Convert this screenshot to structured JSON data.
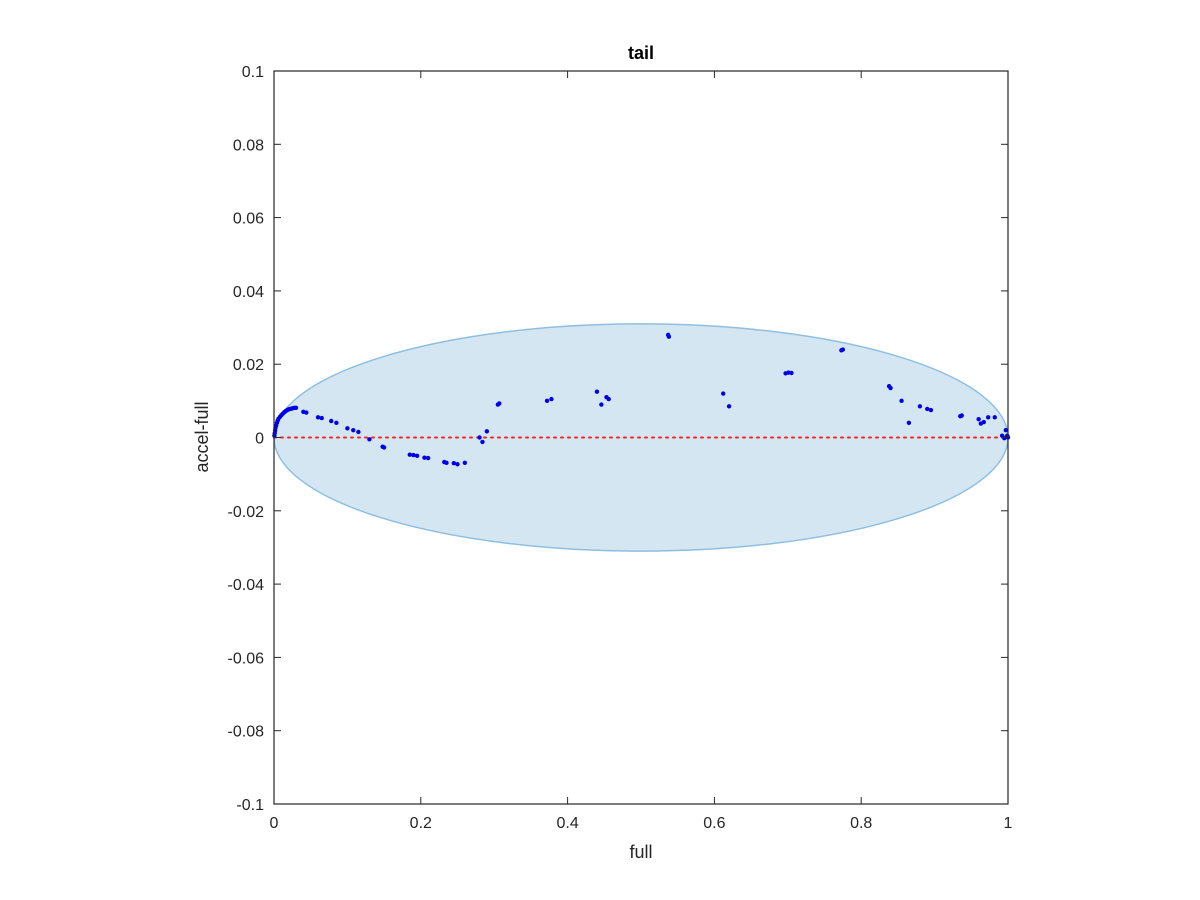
{
  "chart_data": {
    "type": "scatter",
    "title": "tail",
    "xlabel": "full",
    "ylabel": "accel-full",
    "xlim": [
      0,
      1
    ],
    "ylim": [
      -0.1,
      0.1
    ],
    "x_ticks": [
      0,
      0.2,
      0.4,
      0.6,
      0.8,
      1
    ],
    "x_tick_labels": [
      "0",
      "0.2",
      "0.4",
      "0.6",
      "0.8",
      "1"
    ],
    "y_ticks": [
      -0.1,
      -0.08,
      -0.06,
      -0.04,
      -0.02,
      0,
      0.02,
      0.04,
      0.06,
      0.08,
      0.1
    ],
    "y_tick_labels": [
      "-0.1",
      "-0.08",
      "-0.06",
      "-0.04",
      "-0.02",
      "0",
      "0.02",
      "0.04",
      "0.06",
      "0.08",
      "0.1"
    ],
    "grid": false,
    "colors": {
      "points": "#0000e6",
      "ellipse_fill": "#d5e6f3",
      "ellipse_edge": "#8fbfe0",
      "zero_line": "#ff2020",
      "axes": "#262626"
    },
    "ellipse": {
      "cx": 0.5,
      "cy": 0,
      "rx": 0.5,
      "ry": 0.031
    },
    "reference_line": {
      "y": 0,
      "style": "dotted"
    },
    "series": [
      {
        "points": [
          [
            0.0005,
            0.0005
          ],
          [
            0.001,
            0.0012
          ],
          [
            0.0015,
            0.0019
          ],
          [
            0.002,
            0.0026
          ],
          [
            0.003,
            0.0033
          ],
          [
            0.004,
            0.004
          ],
          [
            0.005,
            0.0046
          ],
          [
            0.006,
            0.0051
          ],
          [
            0.008,
            0.0056
          ],
          [
            0.01,
            0.0061
          ],
          [
            0.012,
            0.0065
          ],
          [
            0.014,
            0.0069
          ],
          [
            0.016,
            0.0072
          ],
          [
            0.018,
            0.0075
          ],
          [
            0.02,
            0.0077
          ],
          [
            0.022,
            0.0078
          ],
          [
            0.024,
            0.0079
          ],
          [
            0.026,
            0.008
          ],
          [
            0.028,
            0.0081
          ],
          [
            0.03,
            0.0081
          ],
          [
            0.04,
            0.007
          ],
          [
            0.044,
            0.0068
          ],
          [
            0.06,
            0.0055
          ],
          [
            0.065,
            0.0053
          ],
          [
            0.078,
            0.0045
          ],
          [
            0.085,
            0.004
          ],
          [
            0.1,
            0.0025
          ],
          [
            0.108,
            0.002
          ],
          [
            0.115,
            0.0015
          ],
          [
            0.13,
            -0.0005
          ],
          [
            0.148,
            -0.0025
          ],
          [
            0.15,
            -0.0027
          ],
          [
            0.185,
            -0.0047
          ],
          [
            0.19,
            -0.0048
          ],
          [
            0.195,
            -0.005
          ],
          [
            0.205,
            -0.0055
          ],
          [
            0.21,
            -0.0056
          ],
          [
            0.232,
            -0.0067
          ],
          [
            0.235,
            -0.0069
          ],
          [
            0.245,
            -0.007
          ],
          [
            0.25,
            -0.0073
          ],
          [
            0.26,
            -0.0069
          ],
          [
            0.28,
            0.0
          ],
          [
            0.284,
            -0.0012
          ],
          [
            0.29,
            0.0017
          ],
          [
            0.305,
            0.009
          ],
          [
            0.307,
            0.0093
          ],
          [
            0.372,
            0.01
          ],
          [
            0.378,
            0.0105
          ],
          [
            0.44,
            0.0125
          ],
          [
            0.446,
            0.009
          ],
          [
            0.453,
            0.011
          ],
          [
            0.456,
            0.0105
          ],
          [
            0.537,
            0.028
          ],
          [
            0.538,
            0.0275
          ],
          [
            0.612,
            0.012
          ],
          [
            0.62,
            0.0085
          ],
          [
            0.697,
            0.0175
          ],
          [
            0.701,
            0.0177
          ],
          [
            0.705,
            0.0176
          ],
          [
            0.773,
            0.0238
          ],
          [
            0.775,
            0.024
          ],
          [
            0.838,
            0.014
          ],
          [
            0.84,
            0.0135
          ],
          [
            0.855,
            0.01
          ],
          [
            0.865,
            0.004
          ],
          [
            0.88,
            0.0085
          ],
          [
            0.89,
            0.0078
          ],
          [
            0.895,
            0.0075
          ],
          [
            0.935,
            0.0058
          ],
          [
            0.937,
            0.006
          ],
          [
            0.96,
            0.005
          ],
          [
            0.963,
            0.0038
          ],
          [
            0.967,
            0.0042
          ],
          [
            0.973,
            0.0055
          ],
          [
            0.982,
            0.0055
          ],
          [
            0.992,
            0.0005
          ],
          [
            0.995,
            -0.0002
          ],
          [
            0.997,
            0.002
          ],
          [
            0.999,
            0.0005
          ],
          [
            1.0,
            0.0
          ]
        ]
      }
    ]
  }
}
